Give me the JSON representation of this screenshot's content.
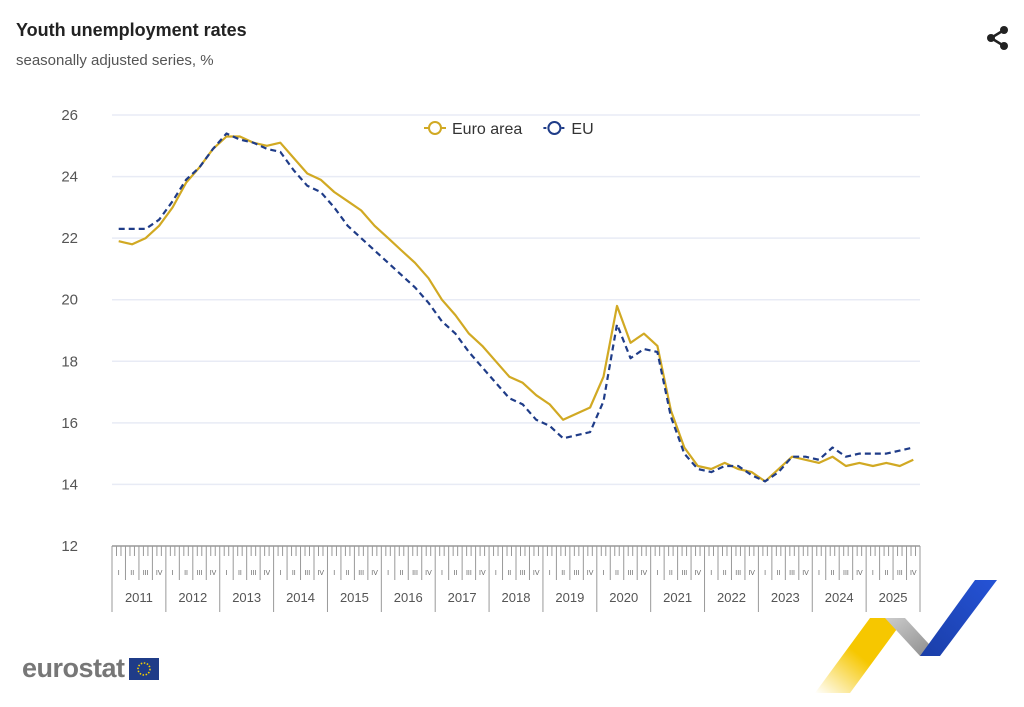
{
  "header": {
    "title": "Youth unemployment rates",
    "subtitle": "seasonally adjusted series, %"
  },
  "share_icon": "share-icon",
  "logo": {
    "text": "eurostat"
  },
  "colors": {
    "euro_area": "#d1a923",
    "eu": "#1f3c88",
    "grid": "#e8ebf5",
    "axis": "#999"
  },
  "chart_data": {
    "type": "line",
    "title": "Youth unemployment rates",
    "subtitle": "seasonally adjusted series, %",
    "ylim": [
      12,
      26
    ],
    "yticks": [
      "12",
      "14",
      "16",
      "18",
      "20",
      "22",
      "24",
      "26"
    ],
    "years": [
      "2011",
      "2012",
      "2013",
      "2014",
      "2015",
      "2016",
      "2017",
      "2018",
      "2019",
      "2020",
      "2021",
      "2022",
      "2023",
      "2024",
      "2025"
    ],
    "quarters": [
      "I",
      "II",
      "III",
      "IV"
    ],
    "x_granularity": "quarterly (Q1 2011 – Q4 2025)",
    "legend": {
      "placement": "top-center",
      "items": [
        "Euro area",
        "EU"
      ]
    },
    "series": [
      {
        "name": "Euro area",
        "style": "solid",
        "values": [
          21.9,
          21.8,
          22.0,
          22.4,
          23.0,
          23.8,
          24.3,
          24.9,
          25.3,
          25.3,
          25.1,
          25.0,
          25.1,
          24.6,
          24.1,
          23.9,
          23.5,
          23.2,
          22.9,
          22.4,
          22.0,
          21.6,
          21.2,
          20.7,
          20.0,
          19.5,
          18.9,
          18.5,
          18.0,
          17.5,
          17.3,
          16.9,
          16.6,
          16.1,
          16.3,
          16.5,
          17.5,
          19.8,
          18.6,
          18.9,
          18.5,
          16.4,
          15.2,
          14.6,
          14.5,
          14.7,
          14.5,
          14.4,
          14.1,
          14.5,
          14.9,
          14.8,
          14.7,
          14.9,
          14.6,
          14.7,
          14.6,
          14.7,
          14.6,
          14.8
        ]
      },
      {
        "name": "EU",
        "style": "dashed",
        "values": [
          22.3,
          22.3,
          22.3,
          22.6,
          23.2,
          23.9,
          24.3,
          24.9,
          25.4,
          25.2,
          25.1,
          24.9,
          24.8,
          24.2,
          23.7,
          23.5,
          23.0,
          22.4,
          22.0,
          21.6,
          21.2,
          20.8,
          20.4,
          19.9,
          19.3,
          18.9,
          18.3,
          17.8,
          17.3,
          16.8,
          16.6,
          16.1,
          15.9,
          15.5,
          15.6,
          15.7,
          16.7,
          19.2,
          18.1,
          18.4,
          18.3,
          16.2,
          15.0,
          14.5,
          14.4,
          14.6,
          14.6,
          14.3,
          14.1,
          14.4,
          14.9,
          14.9,
          14.8,
          15.2,
          14.9,
          15.0,
          15.0,
          15.0,
          15.1,
          15.2
        ]
      }
    ]
  }
}
